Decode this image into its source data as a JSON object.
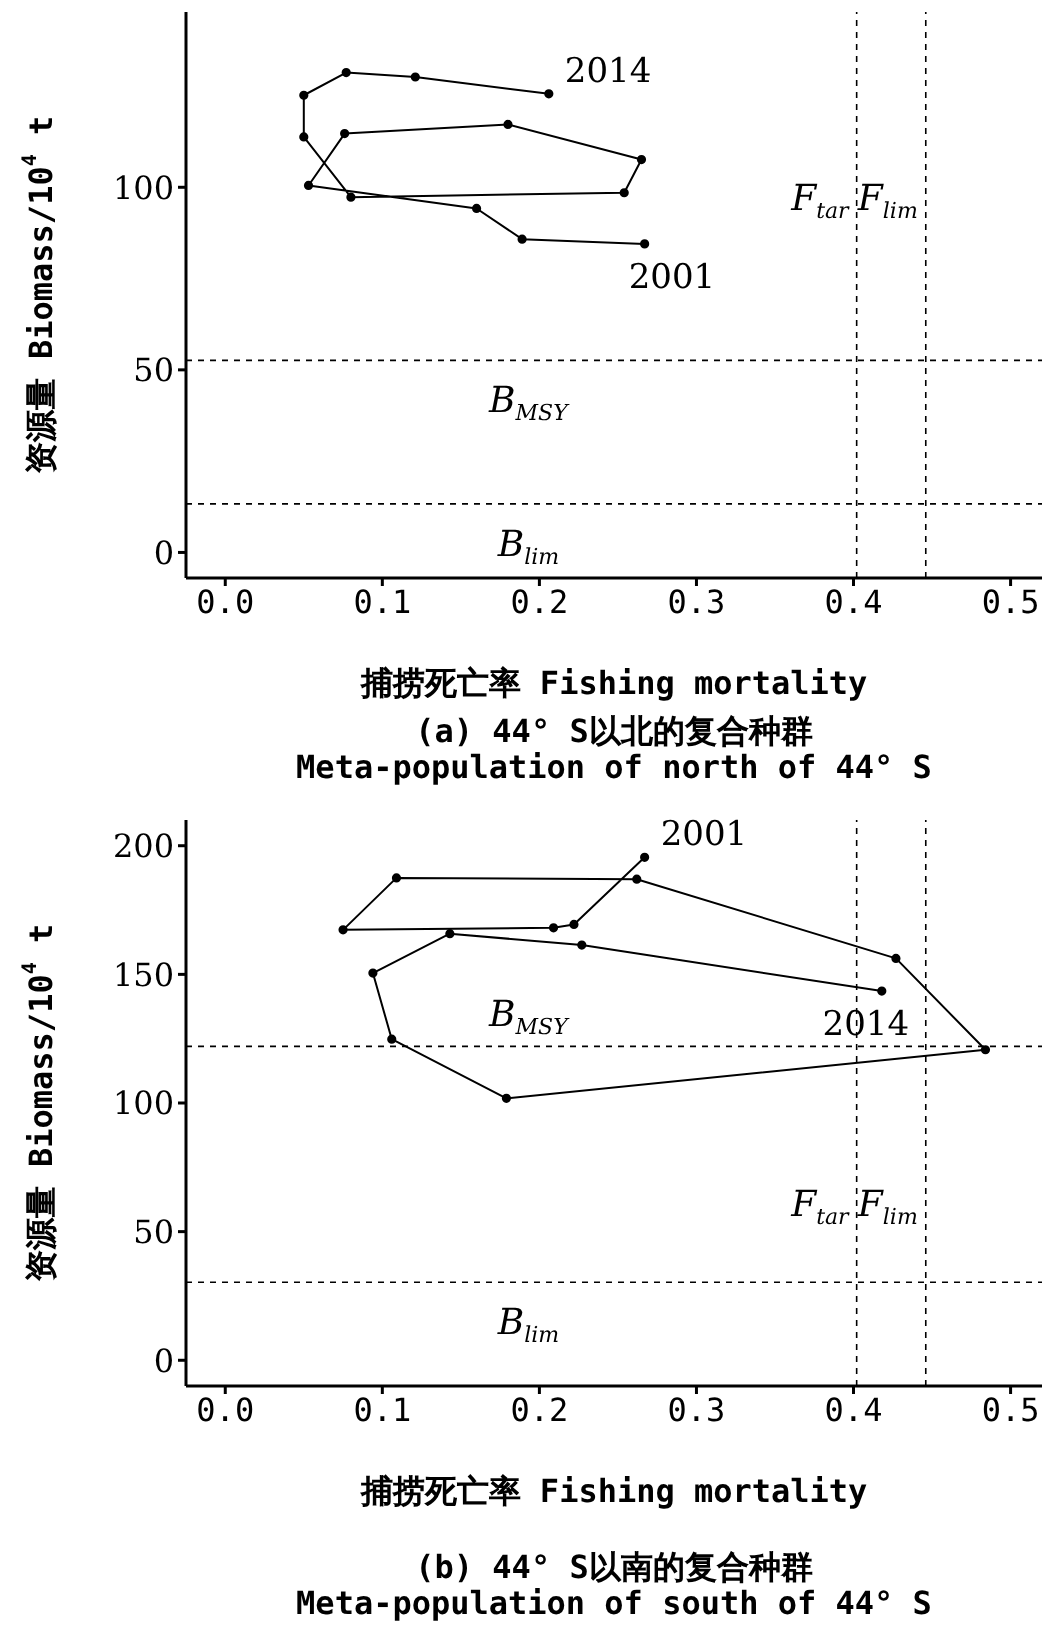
{
  "chart_data": [
    {
      "type": "line",
      "title": "(a) 44° S以北的复合种群",
      "subtitle": "Meta-population of north of 44° S",
      "xlabel": "捕捞死亡率 Fishing mortality",
      "ylabel": "资源量 Biomass/10$^{4}$ t",
      "series": [
        {
          "color": "#000000",
          "x": [
            0.267,
            0.189,
            0.16,
            0.053,
            0.076,
            0.18,
            0.265,
            0.254,
            0.08,
            0.05,
            0.05,
            0.077,
            0.121,
            0.206
          ],
          "values": [
            84.5,
            85.8,
            94.2,
            100.5,
            114.7,
            117.2,
            107.6,
            98.5,
            97.3,
            113.8,
            125.2,
            131.4,
            130.2,
            125.6
          ]
        }
      ],
      "marker": "circle",
      "line_style": "solid",
      "xlim": [
        -0.025,
        0.52
      ],
      "xticks": [
        {
          "value": 0,
          "label": "0.0"
        },
        0.1,
        0.2,
        0.3,
        0.4,
        0.5
      ],
      "ylim": [
        -7,
        148
      ],
      "yticks": [
        0,
        50,
        100
      ],
      "ref_lines": [
        {
          "axis": "x",
          "value": 0.402,
          "label": "F$_{tar}$",
          "line_style": "dashed"
        },
        {
          "axis": "x",
          "value": 0.446,
          "label": "F$_{lim}$",
          "line_style": "dashed"
        },
        {
          "axis": "y",
          "value": 52.6,
          "label": "B$_{MSY}$",
          "line_style": "dashed"
        },
        {
          "axis": "y",
          "value": 13.3,
          "label": "B$_{lim}$",
          "line_style": "dashed"
        }
      ],
      "annotations": [
        {
          "text": "2014",
          "x": 0.206,
          "y": 125.6
        },
        {
          "text": "2001",
          "x": 0.267,
          "y": 84.5
        }
      ]
    },
    {
      "type": "line",
      "title": "(b) 44° S以南的复合种群",
      "subtitle": "Meta-population of south of 44° S",
      "xlabel": "捕捞死亡率 Fishing mortality",
      "ylabel": "资源量 Biomass/10$^{4}$ t",
      "series": [
        {
          "color": "#000000",
          "x": [
            0.267,
            0.222,
            0.209,
            0.075,
            0.109,
            0.262,
            0.427,
            0.484,
            0.179,
            0.106,
            0.094,
            0.143,
            0.227,
            0.418
          ],
          "values": [
            195.5,
            169.4,
            168.1,
            167.3,
            187.5,
            187.0,
            156.2,
            120.7,
            101.8,
            124.8,
            150.5,
            165.8,
            161.4,
            143.5
          ]
        }
      ],
      "marker": "circle",
      "line_style": "solid",
      "xlim": [
        -0.025,
        0.52
      ],
      "xticks": [
        {
          "value": 0,
          "label": "0.0"
        },
        0.1,
        0.2,
        0.3,
        0.4,
        0.5
      ],
      "ylim": [
        -10,
        210
      ],
      "yticks": [
        0,
        50,
        100,
        150,
        200
      ],
      "ref_lines": [
        {
          "axis": "x",
          "value": 0.402,
          "label": "F$_{tar}$",
          "line_style": "dashed"
        },
        {
          "axis": "x",
          "value": 0.446,
          "label": "F$_{lim}$",
          "line_style": "dashed"
        },
        {
          "axis": "y",
          "value": 122.0,
          "label": "B$_{MSY}$",
          "line_style": "dashed"
        },
        {
          "axis": "y",
          "value": 30.3,
          "label": "B$_{lim}$",
          "line_style": "dashed"
        }
      ],
      "annotations": [
        {
          "text": "2001",
          "x": 0.267,
          "y": 195.5
        },
        {
          "text": "2014",
          "x": 0.418,
          "y": 143.5
        }
      ]
    }
  ]
}
